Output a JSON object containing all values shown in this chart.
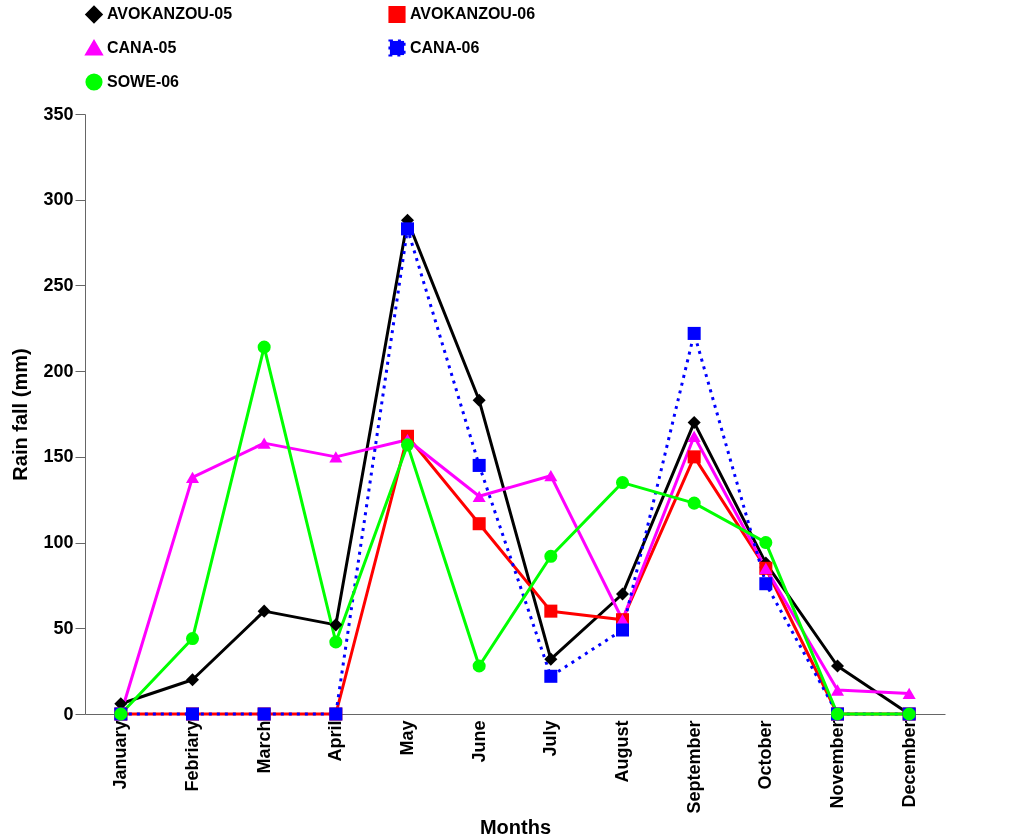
{
  "chart_data": {
    "type": "line",
    "xlabel": "Months",
    "ylabel": "Rain fall (mm)",
    "categories": [
      "January",
      "Febriary",
      "March",
      "April",
      "May",
      "June",
      "July",
      "August",
      "September",
      "October",
      "November",
      "December"
    ],
    "ylim": [
      0,
      350
    ],
    "yticks": [
      0,
      50,
      100,
      150,
      200,
      250,
      300,
      350
    ],
    "grid": false,
    "legend": "top",
    "series": [
      {
        "name": "AVOKANZOU-05",
        "color": "#000000",
        "marker": "diamond",
        "line_style": "solid",
        "values": [
          6,
          20,
          60,
          52,
          288,
          183,
          32,
          70,
          170,
          88,
          28,
          0
        ]
      },
      {
        "name": "AVOKANZOU-06",
        "color": "#ff0000",
        "marker": "square",
        "line_style": "solid",
        "values": [
          0,
          0,
          0,
          0,
          162,
          111,
          60,
          55,
          150,
          85,
          0,
          0
        ]
      },
      {
        "name": "CANA-05",
        "color": "#ff00ff",
        "marker": "triangle",
        "line_style": "solid",
        "values": [
          0,
          138,
          158,
          150,
          160,
          127,
          139,
          55,
          162,
          85,
          14,
          12
        ]
      },
      {
        "name": "CANA-06",
        "color": "#0000ff",
        "marker": "square",
        "line_style": "dotted",
        "values": [
          0,
          0,
          0,
          0,
          283,
          145,
          22,
          49,
          222,
          76,
          0,
          0
        ]
      },
      {
        "name": "SOWE-06",
        "color": "#00ff00",
        "marker": "circle",
        "line_style": "solid",
        "values": [
          0,
          44,
          214,
          42,
          157,
          28,
          92,
          135,
          123,
          100,
          0,
          0
        ]
      }
    ]
  }
}
